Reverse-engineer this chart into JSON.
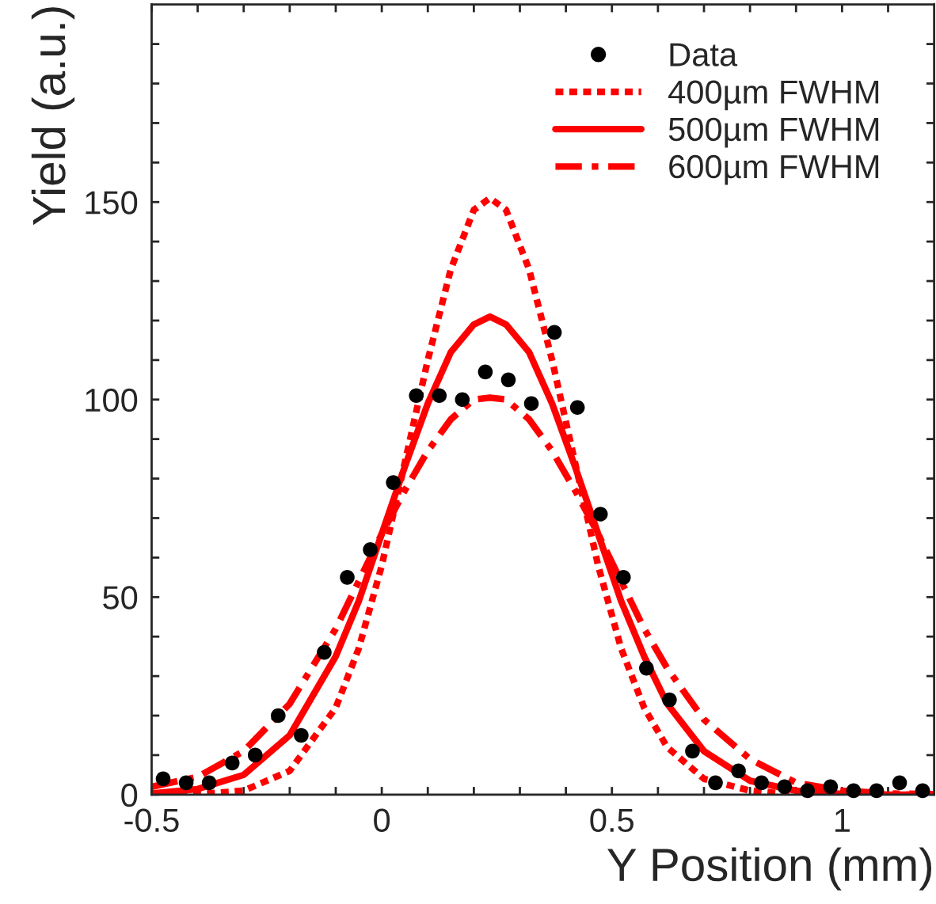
{
  "chart_data": {
    "type": "line",
    "xlabel": "Y Position (mm)",
    "ylabel": "Yield (a.u.)",
    "xlim": [
      -0.5,
      1.2
    ],
    "ylim": [
      0,
      200
    ],
    "xticks": [
      -0.5,
      {
        "value": -0.4,
        "label": null
      },
      {
        "value": -0.3,
        "label": null
      },
      {
        "value": -0.2,
        "label": null
      },
      {
        "value": -0.1,
        "label": null
      },
      0,
      {
        "value": 0.1,
        "label": null
      },
      {
        "value": 0.2,
        "label": null
      },
      {
        "value": 0.3,
        "label": null
      },
      {
        "value": 0.4,
        "label": null
      },
      0.5,
      {
        "value": 0.6,
        "label": null
      },
      {
        "value": 0.7,
        "label": null
      },
      {
        "value": 0.8,
        "label": null
      },
      {
        "value": 0.9,
        "label": null
      },
      1,
      {
        "value": 1.1,
        "label": null
      }
    ],
    "yticks": [
      0,
      {
        "value": 10,
        "label": null
      },
      {
        "value": 20,
        "label": null
      },
      {
        "value": 30,
        "label": null
      },
      {
        "value": 40,
        "label": null
      },
      50,
      {
        "value": 60,
        "label": null
      },
      {
        "value": 70,
        "label": null
      },
      {
        "value": 80,
        "label": null
      },
      {
        "value": 90,
        "label": null
      },
      100,
      {
        "value": 110,
        "label": null
      },
      {
        "value": 120,
        "label": null
      },
      {
        "value": 130,
        "label": null
      },
      {
        "value": 140,
        "label": null
      },
      150,
      {
        "value": 160,
        "label": null
      },
      {
        "value": 170,
        "label": null
      },
      {
        "value": 180,
        "label": null
      },
      {
        "value": 190,
        "label": null
      }
    ],
    "grid": false,
    "legend": "top right",
    "series": [
      {
        "name": "Data",
        "type": "scatter",
        "color": "#000000",
        "marker": "circle",
        "x": [
          -0.475,
          -0.425,
          -0.375,
          -0.325,
          -0.275,
          -0.225,
          -0.175,
          -0.125,
          -0.075,
          -0.025,
          0.025,
          0.075,
          0.125,
          0.175,
          0.225,
          0.275,
          0.325,
          0.375,
          0.425,
          0.475,
          0.525,
          0.575,
          0.625,
          0.675,
          0.725,
          0.775,
          0.825,
          0.875,
          0.925,
          0.975,
          1.025,
          1.075,
          1.125,
          1.175
        ],
        "values": [
          4,
          3,
          3,
          8,
          10,
          20,
          15,
          36,
          55,
          62,
          79,
          101,
          101,
          100,
          107,
          105,
          99,
          117,
          98,
          71,
          55,
          32,
          24,
          11,
          3,
          6,
          3,
          2,
          1,
          2,
          1,
          1,
          3,
          1
        ]
      },
      {
        "name": "400µm FWHM",
        "color": "#ff0000",
        "line_style": "dotted",
        "marker": "none",
        "x": [
          -0.5,
          -0.4,
          -0.3,
          -0.2,
          -0.1,
          -0.05,
          0,
          0.05,
          0.1,
          0.15,
          0.2,
          0.235,
          0.27,
          0.32,
          0.37,
          0.42,
          0.47,
          0.52,
          0.57,
          0.62,
          0.7,
          0.8,
          0.9,
          1.0,
          1.1,
          1.2
        ],
        "values": [
          0,
          0.1,
          1,
          6,
          22,
          37,
          58,
          84,
          110,
          133,
          148,
          151,
          148,
          133,
          110,
          84,
          58,
          37,
          22,
          12,
          4,
          1,
          0,
          0,
          0,
          0
        ]
      },
      {
        "name": "500µm FWHM",
        "color": "#ff0000",
        "line_style": "solid",
        "marker": "none",
        "x": [
          -0.5,
          -0.4,
          -0.3,
          -0.2,
          -0.1,
          -0.05,
          0,
          0.05,
          0.1,
          0.15,
          0.2,
          0.235,
          0.27,
          0.32,
          0.37,
          0.42,
          0.47,
          0.52,
          0.57,
          0.62,
          0.7,
          0.8,
          0.9,
          1.0,
          1.1,
          1.2
        ],
        "values": [
          0.3,
          1.4,
          5,
          15,
          35,
          49,
          66,
          83,
          99,
          112,
          119,
          121,
          119,
          112,
          99,
          83,
          66,
          49,
          35,
          23,
          11,
          3.5,
          1,
          0.2,
          0,
          0
        ]
      },
      {
        "name": "600µm FWHM",
        "color": "#ff0000",
        "line_style": "dashdot",
        "marker": "none",
        "x": [
          -0.5,
          -0.4,
          -0.3,
          -0.2,
          -0.1,
          -0.05,
          0,
          0.05,
          0.1,
          0.15,
          0.2,
          0.235,
          0.27,
          0.32,
          0.37,
          0.42,
          0.47,
          0.52,
          0.57,
          0.62,
          0.7,
          0.8,
          0.9,
          1.0,
          1.1,
          1.2
        ],
        "values": [
          2,
          4.5,
          11,
          23,
          42,
          54,
          66,
          77,
          87,
          95,
          100,
          100.5,
          100,
          95,
          87,
          77,
          66,
          54,
          42,
          32,
          19,
          9,
          3,
          1,
          0.3,
          0.1
        ]
      }
    ]
  }
}
